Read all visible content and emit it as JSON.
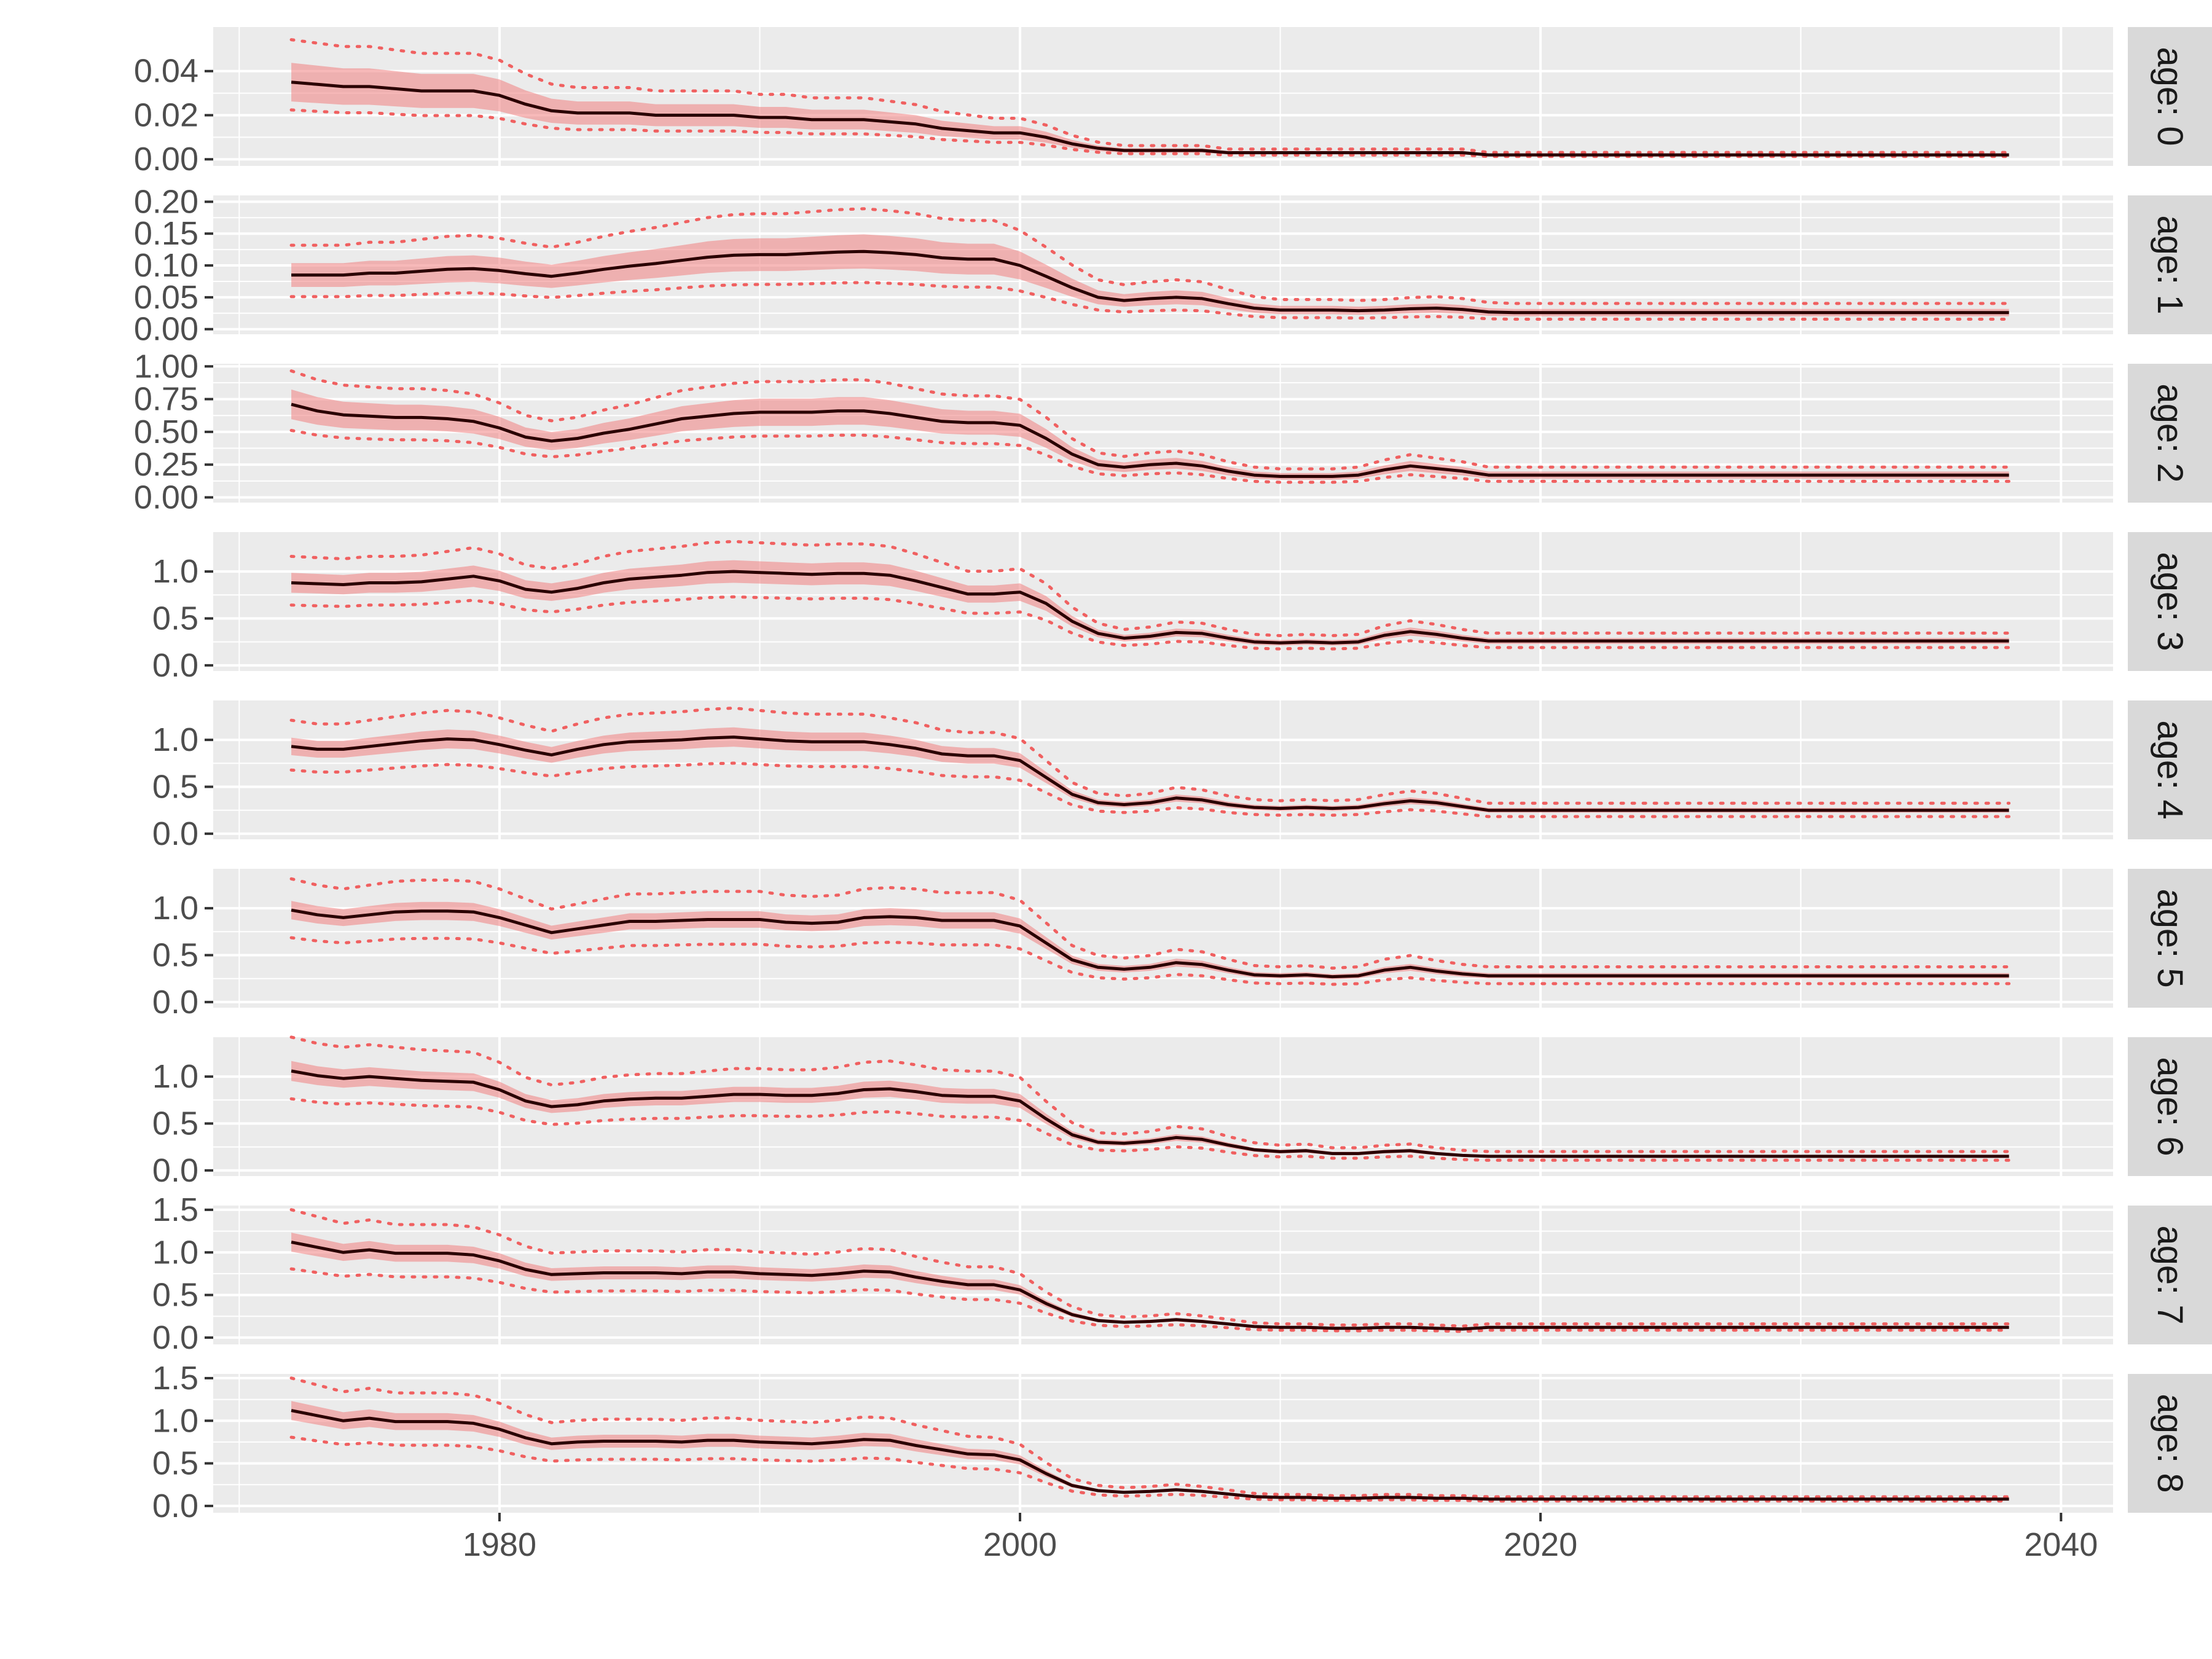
{
  "chart_data": {
    "type": "line",
    "facet_type": "vertical-small-multiples",
    "x_range": [
      1969,
      2042
    ],
    "x_ticks": [
      1980,
      2000,
      2020,
      2040
    ],
    "x_tick_labels": [
      "1980",
      "2000",
      "2020",
      "2040"
    ],
    "x": [
      1972,
      1973,
      1974,
      1975,
      1976,
      1977,
      1978,
      1979,
      1980,
      1981,
      1982,
      1983,
      1984,
      1985,
      1986,
      1987,
      1988,
      1989,
      1990,
      1991,
      1992,
      1993,
      1994,
      1995,
      1996,
      1997,
      1998,
      1999,
      2000,
      2001,
      2002,
      2003,
      2004,
      2005,
      2006,
      2007,
      2008,
      2009,
      2010,
      2011,
      2012,
      2013,
      2014,
      2015,
      2016,
      2017,
      2018,
      2019,
      2020,
      2021,
      2022,
      2023,
      2024,
      2025,
      2026,
      2027,
      2028,
      2029,
      2030,
      2031,
      2032,
      2033,
      2034,
      2035,
      2036,
      2037,
      2038
    ],
    "colors": {
      "panel_background": "#ebebeb",
      "gridline": "#ffffff",
      "estimate_line": "#2a0000",
      "band_fill": "#f08080",
      "interval_dots": "#f06060",
      "strip_background": "#d9d9d9"
    },
    "style": {
      "band_alpha": 0.55,
      "interval_line": "dotted",
      "legend": "none",
      "grid": true
    },
    "panels": [
      {
        "strip_label": "age: 0",
        "ylim": [
          -0.003,
          0.06
        ],
        "y_ticks": [
          0,
          0.02,
          0.04
        ],
        "y_tick_labels": [
          "0.00",
          "0.02",
          "0.04"
        ],
        "estimate": [
          0.035,
          0.034,
          0.033,
          0.033,
          0.032,
          0.031,
          0.031,
          0.031,
          0.029,
          0.025,
          0.022,
          0.021,
          0.021,
          0.021,
          0.02,
          0.02,
          0.02,
          0.02,
          0.019,
          0.019,
          0.018,
          0.018,
          0.018,
          0.017,
          0.016,
          0.014,
          0.013,
          0.012,
          0.012,
          0.01,
          0.007,
          0.005,
          0.004,
          0.004,
          0.004,
          0.004,
          0.003,
          0.003,
          0.003,
          0.003,
          0.003,
          0.003,
          0.003,
          0.003,
          0.003,
          0.003,
          0.002,
          0.002,
          0.002,
          0.002,
          0.002,
          0.002,
          0.002,
          0.002,
          0.002,
          0.002,
          0.002,
          0.002,
          0.002,
          0.002,
          0.002,
          0.002,
          0.002,
          0.002,
          0.002,
          0.002,
          0.002
        ],
        "band_rel": [
          0.25,
          0.25
        ],
        "interval_rel": [
          0.55,
          0.36
        ]
      },
      {
        "strip_label": "age: 1",
        "ylim": [
          -0.008,
          0.21
        ],
        "y_ticks": [
          0,
          0.05,
          0.1,
          0.15,
          0.2
        ],
        "y_tick_labels": [
          "0.00",
          "0.05",
          "0.10",
          "0.15",
          "0.20"
        ],
        "estimate": [
          0.085,
          0.085,
          0.085,
          0.088,
          0.088,
          0.091,
          0.094,
          0.095,
          0.092,
          0.087,
          0.083,
          0.088,
          0.094,
          0.099,
          0.103,
          0.108,
          0.113,
          0.116,
          0.117,
          0.117,
          0.119,
          0.121,
          0.122,
          0.12,
          0.117,
          0.112,
          0.11,
          0.11,
          0.1,
          0.083,
          0.065,
          0.05,
          0.045,
          0.048,
          0.05,
          0.048,
          0.04,
          0.033,
          0.03,
          0.03,
          0.03,
          0.029,
          0.03,
          0.032,
          0.033,
          0.031,
          0.027,
          0.026,
          0.026,
          0.026,
          0.026,
          0.026,
          0.026,
          0.026,
          0.026,
          0.026,
          0.026,
          0.026,
          0.026,
          0.026,
          0.026,
          0.026,
          0.026,
          0.026,
          0.026,
          0.026,
          0.026
        ],
        "band_rel": [
          0.22,
          0.22
        ],
        "interval_rel": [
          0.55,
          0.4
        ]
      },
      {
        "strip_label": "age: 2",
        "ylim": [
          -0.04,
          1.02
        ],
        "y_ticks": [
          0,
          0.25,
          0.5,
          0.75,
          1.0
        ],
        "y_tick_labels": [
          "0.00",
          "0.25",
          "0.50",
          "0.75",
          "1.00"
        ],
        "estimate": [
          0.71,
          0.66,
          0.63,
          0.62,
          0.61,
          0.61,
          0.6,
          0.58,
          0.53,
          0.46,
          0.43,
          0.45,
          0.49,
          0.52,
          0.56,
          0.6,
          0.62,
          0.64,
          0.65,
          0.65,
          0.65,
          0.66,
          0.66,
          0.64,
          0.61,
          0.58,
          0.57,
          0.57,
          0.55,
          0.45,
          0.33,
          0.25,
          0.23,
          0.25,
          0.26,
          0.24,
          0.2,
          0.17,
          0.16,
          0.16,
          0.16,
          0.17,
          0.21,
          0.24,
          0.22,
          0.2,
          0.17,
          0.17,
          0.17,
          0.17,
          0.17,
          0.17,
          0.17,
          0.17,
          0.17,
          0.17,
          0.17,
          0.17,
          0.17,
          0.17,
          0.17,
          0.17,
          0.17,
          0.17,
          0.17,
          0.17,
          0.17
        ],
        "band_rel": [
          0.16,
          0.16
        ],
        "interval_rel": [
          0.36,
          0.28
        ]
      },
      {
        "strip_label": "age: 3",
        "ylim": [
          -0.06,
          1.42
        ],
        "y_ticks": [
          0,
          0.5,
          1.0
        ],
        "y_tick_labels": [
          "0.0",
          "0.5",
          "1.0"
        ],
        "estimate": [
          0.88,
          0.87,
          0.86,
          0.88,
          0.88,
          0.89,
          0.92,
          0.95,
          0.9,
          0.81,
          0.78,
          0.82,
          0.88,
          0.92,
          0.94,
          0.96,
          0.99,
          1.0,
          0.99,
          0.98,
          0.97,
          0.98,
          0.98,
          0.96,
          0.9,
          0.83,
          0.76,
          0.76,
          0.78,
          0.66,
          0.47,
          0.34,
          0.29,
          0.31,
          0.35,
          0.34,
          0.29,
          0.25,
          0.24,
          0.25,
          0.24,
          0.25,
          0.32,
          0.36,
          0.33,
          0.29,
          0.26,
          0.26,
          0.26,
          0.26,
          0.26,
          0.26,
          0.26,
          0.26,
          0.26,
          0.26,
          0.26,
          0.26,
          0.26,
          0.26,
          0.26,
          0.26,
          0.26,
          0.26,
          0.26,
          0.26,
          0.26
        ],
        "band_rel": [
          0.12,
          0.12
        ],
        "interval_rel": [
          0.32,
          0.27
        ]
      },
      {
        "strip_label": "age: 4",
        "ylim": [
          -0.06,
          1.42
        ],
        "y_ticks": [
          0,
          0.5,
          1.0
        ],
        "y_tick_labels": [
          "0.0",
          "0.5",
          "1.0"
        ],
        "estimate": [
          0.93,
          0.9,
          0.9,
          0.93,
          0.96,
          0.99,
          1.01,
          1.0,
          0.95,
          0.89,
          0.84,
          0.9,
          0.95,
          0.98,
          0.99,
          1.0,
          1.02,
          1.03,
          1.01,
          0.99,
          0.98,
          0.98,
          0.98,
          0.95,
          0.91,
          0.85,
          0.83,
          0.83,
          0.78,
          0.6,
          0.42,
          0.33,
          0.31,
          0.33,
          0.38,
          0.36,
          0.31,
          0.28,
          0.27,
          0.28,
          0.27,
          0.28,
          0.32,
          0.35,
          0.33,
          0.29,
          0.25,
          0.25,
          0.25,
          0.25,
          0.25,
          0.25,
          0.25,
          0.25,
          0.25,
          0.25,
          0.25,
          0.25,
          0.25,
          0.25,
          0.25,
          0.25,
          0.25,
          0.25,
          0.25,
          0.25,
          0.25
        ],
        "band_rel": [
          0.1,
          0.1
        ],
        "interval_rel": [
          0.3,
          0.27
        ]
      },
      {
        "strip_label": "age: 5",
        "ylim": [
          -0.06,
          1.42
        ],
        "y_ticks": [
          0,
          0.5,
          1.0
        ],
        "y_tick_labels": [
          "0.0",
          "0.5",
          "1.0"
        ],
        "estimate": [
          0.98,
          0.93,
          0.9,
          0.93,
          0.96,
          0.97,
          0.97,
          0.96,
          0.9,
          0.82,
          0.74,
          0.78,
          0.82,
          0.86,
          0.86,
          0.87,
          0.88,
          0.88,
          0.88,
          0.85,
          0.84,
          0.85,
          0.9,
          0.91,
          0.9,
          0.87,
          0.87,
          0.87,
          0.81,
          0.63,
          0.45,
          0.37,
          0.35,
          0.37,
          0.42,
          0.4,
          0.34,
          0.29,
          0.28,
          0.29,
          0.27,
          0.28,
          0.34,
          0.37,
          0.33,
          0.3,
          0.28,
          0.28,
          0.28,
          0.28,
          0.28,
          0.28,
          0.28,
          0.28,
          0.28,
          0.28,
          0.28,
          0.28,
          0.28,
          0.28,
          0.28,
          0.28,
          0.28,
          0.28,
          0.28,
          0.28,
          0.28
        ],
        "band_rel": [
          0.1,
          0.1
        ],
        "interval_rel": [
          0.34,
          0.3
        ]
      },
      {
        "strip_label": "age: 6",
        "ylim": [
          -0.06,
          1.42
        ],
        "y_ticks": [
          0,
          0.5,
          1.0
        ],
        "y_tick_labels": [
          "0.0",
          "0.5",
          "1.0"
        ],
        "estimate": [
          1.06,
          1.01,
          0.98,
          1.0,
          0.98,
          0.96,
          0.95,
          0.94,
          0.86,
          0.74,
          0.68,
          0.7,
          0.74,
          0.76,
          0.77,
          0.77,
          0.79,
          0.81,
          0.81,
          0.8,
          0.8,
          0.82,
          0.86,
          0.87,
          0.84,
          0.8,
          0.79,
          0.79,
          0.74,
          0.55,
          0.38,
          0.3,
          0.29,
          0.31,
          0.35,
          0.33,
          0.27,
          0.22,
          0.2,
          0.21,
          0.18,
          0.18,
          0.2,
          0.21,
          0.18,
          0.16,
          0.15,
          0.15,
          0.15,
          0.15,
          0.15,
          0.15,
          0.15,
          0.15,
          0.15,
          0.15,
          0.15,
          0.15,
          0.15,
          0.15,
          0.15,
          0.15,
          0.15,
          0.15,
          0.15,
          0.15,
          0.15
        ],
        "band_rel": [
          0.1,
          0.1
        ],
        "interval_rel": [
          0.34,
          0.28
        ]
      },
      {
        "strip_label": "age: 7",
        "ylim": [
          -0.08,
          1.55
        ],
        "y_ticks": [
          0,
          0.5,
          1.0,
          1.5
        ],
        "y_tick_labels": [
          "0.0",
          "0.5",
          "1.0",
          "1.5"
        ],
        "estimate": [
          1.12,
          1.06,
          1.0,
          1.03,
          0.99,
          0.99,
          0.99,
          0.97,
          0.9,
          0.8,
          0.74,
          0.75,
          0.76,
          0.76,
          0.76,
          0.75,
          0.77,
          0.77,
          0.75,
          0.74,
          0.73,
          0.75,
          0.78,
          0.77,
          0.71,
          0.66,
          0.62,
          0.62,
          0.56,
          0.4,
          0.27,
          0.2,
          0.18,
          0.19,
          0.21,
          0.19,
          0.16,
          0.13,
          0.12,
          0.12,
          0.11,
          0.11,
          0.12,
          0.12,
          0.11,
          0.1,
          0.12,
          0.12,
          0.12,
          0.12,
          0.12,
          0.12,
          0.12,
          0.12,
          0.12,
          0.12,
          0.12,
          0.12,
          0.12,
          0.12,
          0.12,
          0.12,
          0.12,
          0.12,
          0.12,
          0.12,
          0.12
        ],
        "band_rel": [
          0.1,
          0.1
        ],
        "interval_rel": [
          0.34,
          0.28
        ]
      },
      {
        "strip_label": "age: 8",
        "ylim": [
          -0.08,
          1.55
        ],
        "y_ticks": [
          0,
          0.5,
          1.0,
          1.5
        ],
        "y_tick_labels": [
          "0.0",
          "0.5",
          "1.0",
          "1.5"
        ],
        "estimate": [
          1.12,
          1.06,
          1.0,
          1.03,
          0.99,
          0.99,
          0.99,
          0.97,
          0.9,
          0.8,
          0.73,
          0.75,
          0.76,
          0.76,
          0.76,
          0.75,
          0.77,
          0.77,
          0.75,
          0.74,
          0.73,
          0.75,
          0.78,
          0.77,
          0.71,
          0.66,
          0.61,
          0.6,
          0.54,
          0.38,
          0.24,
          0.18,
          0.16,
          0.17,
          0.19,
          0.17,
          0.14,
          0.11,
          0.1,
          0.1,
          0.09,
          0.09,
          0.1,
          0.1,
          0.09,
          0.09,
          0.08,
          0.08,
          0.08,
          0.08,
          0.08,
          0.08,
          0.08,
          0.08,
          0.08,
          0.08,
          0.08,
          0.08,
          0.08,
          0.08,
          0.08,
          0.08,
          0.08,
          0.08,
          0.08,
          0.08,
          0.08
        ],
        "band_rel": [
          0.1,
          0.1
        ],
        "interval_rel": [
          0.34,
          0.28
        ]
      }
    ]
  }
}
